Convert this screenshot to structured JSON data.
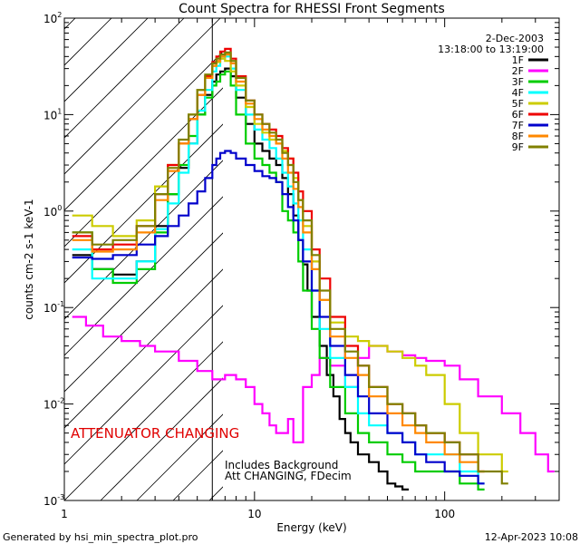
{
  "chart_data": {
    "type": "line",
    "step": true,
    "title": "Count Spectra for RHESSI Front Segments",
    "xlabel": "Energy (keV)",
    "ylabel": "counts cm-2 s-1 keV-1",
    "xscale": "log",
    "yscale": "log",
    "xlim": [
      1,
      400
    ],
    "ylim": [
      0.001,
      100
    ],
    "x_ticks": [
      {
        "value": 1,
        "label": "1"
      },
      {
        "value": 10,
        "label": "10"
      },
      {
        "value": 100,
        "label": "100"
      }
    ],
    "y_ticks": [
      {
        "value": 100,
        "base": "10",
        "exp": "2"
      },
      {
        "value": 10,
        "base": "10",
        "exp": "1"
      },
      {
        "value": 1,
        "base": "10",
        "exp": "0"
      },
      {
        "value": 0.1,
        "base": "10",
        "exp": "-1"
      },
      {
        "value": 0.01,
        "base": "10",
        "exp": "-2"
      },
      {
        "value": 0.001,
        "base": "10",
        "exp": "-3"
      }
    ],
    "date": "2-Dec-2003",
    "time_range": "13:18:00 to 13:19:00",
    "attenuator_label": "ATTENUATOR CHANGING",
    "background_note_1": "Includes Background",
    "background_note_2": "Att CHANGING, FDecim",
    "threshold_energy": 6,
    "series": [
      {
        "name": "1F",
        "color": "#000000",
        "x": [
          1.1,
          1.4,
          1.8,
          2.4,
          3,
          3.5,
          4,
          4.5,
          5,
          5.5,
          6,
          6.3,
          6.6,
          7,
          7.5,
          8,
          9,
          10,
          11,
          12,
          13,
          14,
          15,
          16,
          17,
          18,
          19,
          20,
          22,
          24,
          26,
          28,
          30,
          32,
          35,
          40,
          45,
          50,
          55,
          60
        ],
        "y": [
          0.35,
          0.25,
          0.22,
          0.3,
          0.7,
          1.5,
          2.8,
          5,
          10,
          16,
          22,
          26,
          28,
          30,
          25,
          15,
          8,
          5,
          4.2,
          3.5,
          3,
          2.2,
          1.5,
          0.9,
          0.5,
          0.28,
          0.15,
          0.08,
          0.04,
          0.02,
          0.012,
          0.007,
          0.005,
          0.004,
          0.003,
          0.0025,
          0.002,
          0.0015,
          0.0014,
          0.0013
        ]
      },
      {
        "name": "2F",
        "color": "#ff00ff",
        "x": [
          1.1,
          1.3,
          1.6,
          2,
          2.5,
          3,
          4,
          5,
          6,
          7,
          8,
          9,
          10,
          11,
          12,
          13,
          14,
          15,
          16,
          18,
          20,
          22,
          25,
          30,
          35,
          40,
          50,
          60,
          70,
          80,
          100,
          120,
          150,
          200,
          250,
          300,
          350
        ],
        "y": [
          0.08,
          0.065,
          0.05,
          0.045,
          0.04,
          0.035,
          0.028,
          0.022,
          0.018,
          0.02,
          0.018,
          0.015,
          0.01,
          0.008,
          0.006,
          0.005,
          0.005,
          0.007,
          0.004,
          0.015,
          0.02,
          0.03,
          0.025,
          0.015,
          0.03,
          0.04,
          0.035,
          0.032,
          0.03,
          0.028,
          0.025,
          0.018,
          0.012,
          0.008,
          0.005,
          0.003,
          0.002
        ]
      },
      {
        "name": "3F",
        "color": "#00cc00",
        "x": [
          1.1,
          1.4,
          1.8,
          2.4,
          3,
          3.5,
          4,
          4.5,
          5,
          5.5,
          6,
          6.3,
          6.6,
          7,
          7.5,
          8,
          9,
          10,
          11,
          12,
          13,
          14,
          15,
          16,
          17,
          18,
          20,
          22,
          25,
          30,
          35,
          40,
          50,
          60,
          70,
          80,
          100,
          120,
          150
        ],
        "y": [
          0.6,
          0.25,
          0.18,
          0.25,
          0.6,
          1.5,
          3,
          6,
          10,
          15,
          20,
          22,
          26,
          28,
          20,
          10,
          5,
          3.5,
          3,
          2.5,
          2,
          1,
          0.8,
          0.6,
          0.3,
          0.15,
          0.06,
          0.03,
          0.015,
          0.008,
          0.005,
          0.004,
          0.003,
          0.0025,
          0.002,
          0.002,
          0.002,
          0.0015,
          0.0013
        ]
      },
      {
        "name": "4F",
        "color": "#00ffff",
        "x": [
          1.1,
          1.4,
          1.8,
          2.4,
          3,
          3.5,
          4,
          4.5,
          5,
          5.5,
          6,
          6.3,
          6.6,
          7,
          7.5,
          8,
          9,
          10,
          11,
          12,
          13,
          14,
          15,
          16,
          17,
          18,
          20,
          22,
          25,
          30,
          35,
          40,
          50,
          60,
          70,
          80,
          100,
          120,
          150
        ],
        "y": [
          0.4,
          0.2,
          0.2,
          0.3,
          0.65,
          1.2,
          2.5,
          5,
          11,
          18,
          28,
          32,
          38,
          40,
          30,
          18,
          10,
          7,
          5.5,
          4.5,
          3.5,
          2.5,
          1.8,
          1.2,
          0.8,
          0.4,
          0.15,
          0.06,
          0.03,
          0.015,
          0.008,
          0.006,
          0.005,
          0.004,
          0.003,
          0.003,
          0.003,
          0.002,
          0.0015
        ]
      },
      {
        "name": "5F",
        "color": "#cccc00",
        "x": [
          1.1,
          1.4,
          1.8,
          2.4,
          3,
          3.5,
          4,
          4.5,
          5,
          5.5,
          6,
          6.3,
          6.6,
          7,
          7.5,
          8,
          9,
          10,
          11,
          12,
          13,
          14,
          15,
          16,
          17,
          18,
          20,
          22,
          25,
          30,
          35,
          40,
          50,
          60,
          70,
          80,
          100,
          120,
          150,
          200
        ],
        "y": [
          0.9,
          0.7,
          0.55,
          0.8,
          1.8,
          3,
          5,
          10,
          18,
          25,
          32,
          35,
          38,
          36,
          28,
          20,
          12,
          8,
          6.5,
          5.5,
          5,
          4.2,
          3.5,
          2.2,
          1.3,
          0.7,
          0.3,
          0.12,
          0.07,
          0.05,
          0.045,
          0.04,
          0.035,
          0.03,
          0.025,
          0.02,
          0.01,
          0.005,
          0.003,
          0.002
        ]
      },
      {
        "name": "6F",
        "color": "#ee0000",
        "x": [
          1.1,
          1.4,
          1.8,
          2.4,
          3,
          3.5,
          4,
          4.5,
          5,
          5.5,
          6,
          6.3,
          6.6,
          7,
          7.5,
          8,
          9,
          10,
          11,
          12,
          13,
          14,
          15,
          16,
          17,
          18,
          20,
          22,
          25,
          30,
          35,
          40,
          50,
          60,
          70,
          80,
          100,
          120,
          150
        ],
        "y": [
          0.55,
          0.4,
          0.45,
          0.7,
          1.5,
          3,
          5,
          9,
          16,
          25,
          35,
          40,
          45,
          48,
          38,
          25,
          14,
          10,
          8,
          7,
          6,
          4.5,
          3.5,
          2.5,
          1.6,
          1,
          0.4,
          0.2,
          0.08,
          0.04,
          0.025,
          0.015,
          0.01,
          0.008,
          0.006,
          0.005,
          0.004,
          0.003,
          0.002
        ]
      },
      {
        "name": "7F",
        "color": "#0000cc",
        "x": [
          1.1,
          1.4,
          1.8,
          2.4,
          3,
          3.5,
          4,
          4.5,
          5,
          5.5,
          6,
          6.3,
          6.6,
          7,
          7.5,
          8,
          9,
          10,
          11,
          12,
          13,
          14,
          15,
          16,
          17,
          18,
          20,
          22,
          25,
          30,
          35,
          40,
          50,
          60,
          70,
          80,
          100,
          120,
          150
        ],
        "y": [
          0.33,
          0.32,
          0.35,
          0.45,
          0.55,
          0.7,
          0.9,
          1.2,
          1.6,
          2.2,
          3,
          3.5,
          4,
          4.2,
          4,
          3.5,
          3,
          2.6,
          2.3,
          2.2,
          2,
          1.5,
          1.1,
          0.8,
          0.5,
          0.3,
          0.15,
          0.08,
          0.04,
          0.02,
          0.012,
          0.008,
          0.005,
          0.004,
          0.003,
          0.0025,
          0.002,
          0.0018,
          0.0015
        ]
      },
      {
        "name": "8F",
        "color": "#ff8800",
        "x": [
          1.1,
          1.4,
          1.8,
          2.4,
          3,
          3.5,
          4,
          4.5,
          5,
          5.5,
          6,
          6.3,
          6.6,
          7,
          7.5,
          8,
          9,
          10,
          11,
          12,
          13,
          14,
          15,
          16,
          17,
          18,
          20,
          22,
          25,
          30,
          35,
          40,
          50,
          60,
          70,
          80,
          100,
          120,
          150
        ],
        "y": [
          0.5,
          0.38,
          0.4,
          0.6,
          1.3,
          2.6,
          5,
          9,
          16,
          24,
          32,
          36,
          40,
          42,
          34,
          22,
          13,
          9,
          7,
          6,
          5,
          3.5,
          2.5,
          1.7,
          1.1,
          0.6,
          0.25,
          0.12,
          0.05,
          0.03,
          0.02,
          0.012,
          0.008,
          0.006,
          0.005,
          0.004,
          0.003,
          0.0025,
          0.002
        ]
      },
      {
        "name": "9F",
        "color": "#808000",
        "x": [
          1.1,
          1.4,
          1.8,
          2.4,
          3,
          3.5,
          4,
          4.5,
          5,
          5.5,
          6,
          6.3,
          6.6,
          7,
          7.5,
          8,
          9,
          10,
          11,
          12,
          13,
          14,
          15,
          16,
          17,
          18,
          20,
          22,
          25,
          30,
          35,
          40,
          50,
          60,
          70,
          80,
          100,
          120,
          150,
          200
        ],
        "y": [
          0.6,
          0.45,
          0.5,
          0.7,
          1.5,
          2.8,
          5.5,
          10,
          18,
          26,
          34,
          38,
          42,
          44,
          36,
          24,
          14,
          10,
          8,
          6.5,
          5.5,
          4,
          3,
          2,
          1.3,
          0.8,
          0.35,
          0.15,
          0.06,
          0.035,
          0.025,
          0.015,
          0.01,
          0.008,
          0.006,
          0.005,
          0.004,
          0.003,
          0.002,
          0.0015
        ]
      }
    ]
  },
  "footer": {
    "left": "Generated by hsi_min_spectra_plot.pro",
    "right": "12-Apr-2023 10:08"
  }
}
